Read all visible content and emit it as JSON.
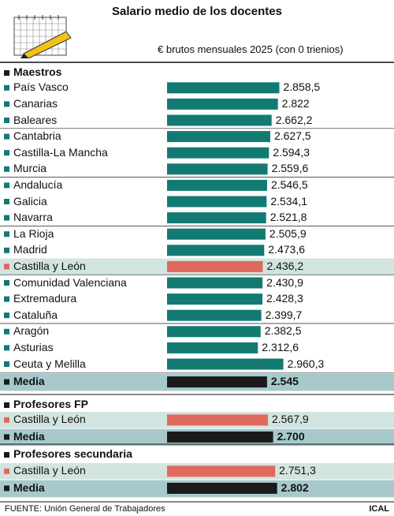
{
  "header": {
    "title": "Salario medio de los docentes",
    "subtitle": "€ brutos mensuales 2025 (con 0 trienios)"
  },
  "footer": {
    "source": "FUENTE: Unión General de Trabajadores",
    "brand": "ICAL"
  },
  "colors": {
    "teal": "#137a72",
    "red": "#e0695e",
    "black": "#1a1a1a",
    "highlight": "#d2e4df",
    "media_band": "#a7c9cc"
  },
  "chart_data": {
    "type": "bar",
    "orientation": "horizontal",
    "unit": "€ brutos mensuales 2025 (con 0 trienios)",
    "groups": [
      {
        "name": "Maestros",
        "items": [
          {
            "label": "País Vasco",
            "value": 2858.5,
            "display": "2.858,5"
          },
          {
            "label": "Canarias",
            "value": 2822,
            "display": "2.822"
          },
          {
            "label": "Baleares",
            "value": 2662.2,
            "display": "2.662,2"
          },
          {
            "label": "Cantabria",
            "value": 2627.5,
            "display": "2.627,5"
          },
          {
            "label": "Castilla-La Mancha",
            "value": 2594.3,
            "display": "2.594,3"
          },
          {
            "label": "Murcia",
            "value": 2559.6,
            "display": "2.559,6"
          },
          {
            "label": "Andalucía",
            "value": 2546.5,
            "display": "2.546,5"
          },
          {
            "label": "Galicia",
            "value": 2534.1,
            "display": "2.534,1"
          },
          {
            "label": "Navarra",
            "value": 2521.8,
            "display": "2.521,8"
          },
          {
            "label": "La Rioja",
            "value": 2505.9,
            "display": "2.505,9"
          },
          {
            "label": "Madrid",
            "value": 2473.6,
            "display": "2.473,6"
          },
          {
            "label": "Castilla y León",
            "value": 2436.2,
            "display": "2.436,2",
            "highlight": true
          },
          {
            "label": "Comunidad Valenciana",
            "value": 2430.9,
            "display": "2.430,9"
          },
          {
            "label": "Extremadura",
            "value": 2428.3,
            "display": "2.428,3"
          },
          {
            "label": "Cataluña",
            "value": 2399.7,
            "display": "2.399,7"
          },
          {
            "label": "Aragón",
            "value": 2382.5,
            "display": "2.382,5"
          },
          {
            "label": "Asturias",
            "value": 2312.6,
            "display": "2.312,6"
          },
          {
            "label": "Ceuta y Melilla",
            "value": 2960.3,
            "display": "2.960,3"
          }
        ],
        "media": {
          "label": "Media",
          "value": 2545,
          "display": "2.545"
        }
      },
      {
        "name": "Profesores FP",
        "items": [
          {
            "label": "Castilla y León",
            "value": 2567.9,
            "display": "2.567,9",
            "highlight": true
          }
        ],
        "media": {
          "label": "Media",
          "value": 2700,
          "display": "2.700"
        }
      },
      {
        "name": "Profesores secundaria",
        "items": [
          {
            "label": "Castilla y León",
            "value": 2751.3,
            "display": "2.751,3",
            "highlight": true
          }
        ],
        "media": {
          "label": "Media",
          "value": 2802,
          "display": "2.802"
        }
      }
    ]
  }
}
